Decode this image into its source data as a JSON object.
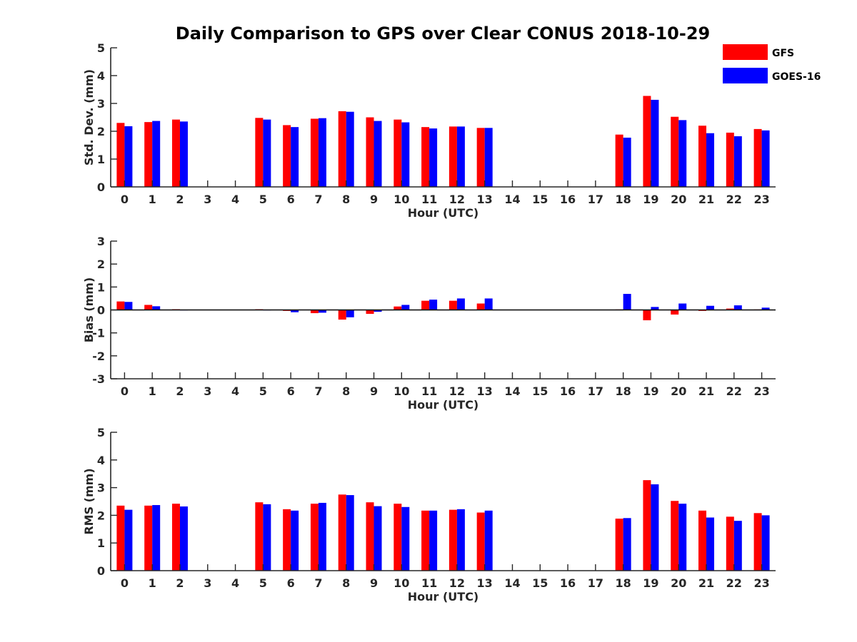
{
  "chart_data": {
    "type": "bar",
    "title": "Daily Comparison to GPS over Clear CONUS 2018-10-29",
    "legend": {
      "position": "top-right",
      "entries": [
        {
          "name": "GFS",
          "color": "#ff0000"
        },
        {
          "name": "GOES-16",
          "color": "#0000ff"
        }
      ]
    },
    "categories": [
      "0",
      "1",
      "2",
      "3",
      "4",
      "5",
      "6",
      "7",
      "8",
      "9",
      "10",
      "11",
      "12",
      "13",
      "14",
      "15",
      "16",
      "17",
      "18",
      "19",
      "20",
      "21",
      "22",
      "23"
    ],
    "panels": [
      {
        "id": "std",
        "xlabel": "Hour (UTC)",
        "ylabel": "Std. Dev. (mm)",
        "ylim": [
          0,
          5
        ],
        "yticks": [
          0,
          1,
          2,
          3,
          4,
          5
        ],
        "series": [
          {
            "name": "GFS",
            "color": "#ff0000",
            "values": [
              2.3,
              2.33,
              2.42,
              null,
              null,
              2.48,
              2.22,
              2.45,
              2.72,
              2.5,
              2.42,
              2.15,
              2.17,
              2.12,
              null,
              null,
              null,
              null,
              1.88,
              3.27,
              2.52,
              2.2,
              1.95,
              2.08
            ]
          },
          {
            "name": "GOES-16",
            "color": "#0000ff",
            "values": [
              2.18,
              2.37,
              2.35,
              null,
              null,
              2.42,
              2.15,
              2.47,
              2.7,
              2.37,
              2.32,
              2.1,
              2.17,
              2.12,
              null,
              null,
              null,
              null,
              1.77,
              3.13,
              2.4,
              1.93,
              1.82,
              2.03
            ]
          }
        ]
      },
      {
        "id": "bias",
        "xlabel": "Hour (UTC)",
        "ylabel": "Bias (mm)",
        "ylim": [
          -3,
          3
        ],
        "yticks": [
          -3,
          -2,
          -1,
          0,
          1,
          2,
          3
        ],
        "series": [
          {
            "name": "GFS",
            "color": "#ff0000",
            "values": [
              0.37,
              0.22,
              0.03,
              null,
              null,
              0.03,
              -0.04,
              -0.14,
              -0.42,
              -0.17,
              0.15,
              0.4,
              0.4,
              0.28,
              null,
              null,
              null,
              null,
              0.02,
              -0.45,
              -0.2,
              -0.04,
              0.06,
              0.02
            ]
          },
          {
            "name": "GOES-16",
            "color": "#0000ff",
            "values": [
              0.35,
              0.16,
              0.0,
              null,
              null,
              0.0,
              -0.1,
              -0.12,
              -0.32,
              -0.08,
              0.22,
              0.45,
              0.5,
              0.5,
              null,
              null,
              null,
              null,
              0.7,
              0.13,
              0.28,
              0.18,
              0.2,
              0.1
            ]
          }
        ]
      },
      {
        "id": "rms",
        "xlabel": "Hour (UTC)",
        "ylabel": "RMS (mm)",
        "ylim": [
          0,
          5
        ],
        "yticks": [
          0,
          1,
          2,
          3,
          4,
          5
        ],
        "series": [
          {
            "name": "GFS",
            "color": "#ff0000",
            "values": [
              2.35,
              2.35,
              2.42,
              null,
              null,
              2.47,
              2.22,
              2.42,
              2.75,
              2.47,
              2.42,
              2.17,
              2.2,
              2.1,
              null,
              null,
              null,
              null,
              1.88,
              3.27,
              2.52,
              2.17,
              1.95,
              2.08
            ]
          },
          {
            "name": "GOES-16",
            "color": "#0000ff",
            "values": [
              2.2,
              2.37,
              2.32,
              null,
              null,
              2.4,
              2.17,
              2.45,
              2.73,
              2.33,
              2.3,
              2.17,
              2.22,
              2.17,
              null,
              null,
              null,
              null,
              1.9,
              3.12,
              2.42,
              1.92,
              1.8,
              2.0
            ]
          }
        ]
      }
    ]
  }
}
